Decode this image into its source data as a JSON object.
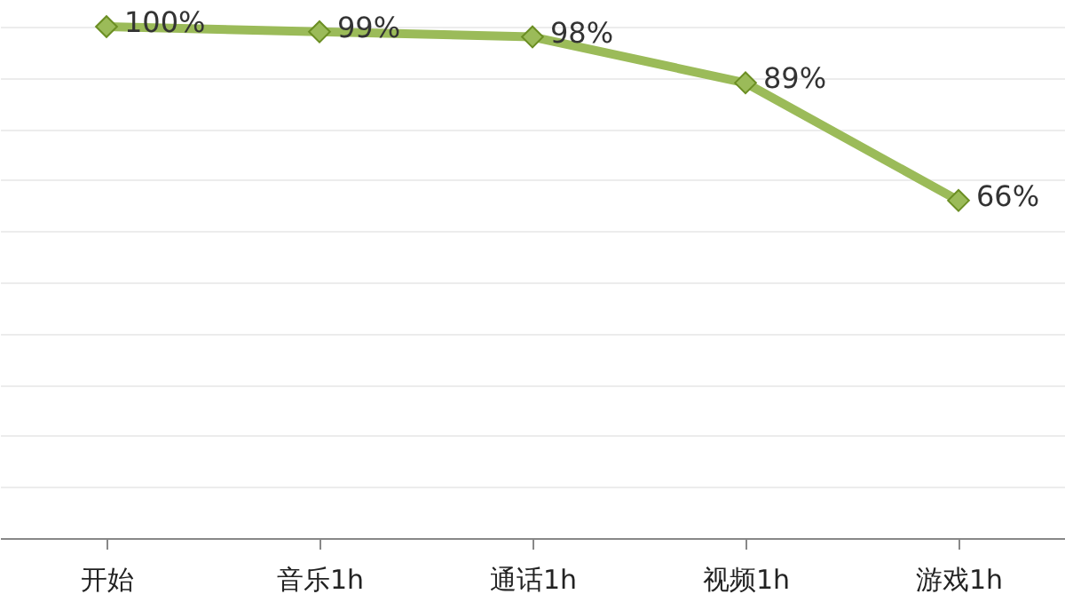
{
  "chart_data": {
    "type": "line",
    "categories": [
      "开始",
      "音乐1h",
      "通话1h",
      "视频1h",
      "游戏1h"
    ],
    "series": [
      {
        "color": "#9bbb59",
        "values": [
          100,
          99,
          98,
          89,
          66
        ],
        "value_labels": [
          "100%",
          "99%",
          "98%",
          "89%",
          "66%"
        ]
      }
    ],
    "tick_labels": "x",
    "grid": "y",
    "marker": "diamond",
    "line_style": "solid"
  }
}
